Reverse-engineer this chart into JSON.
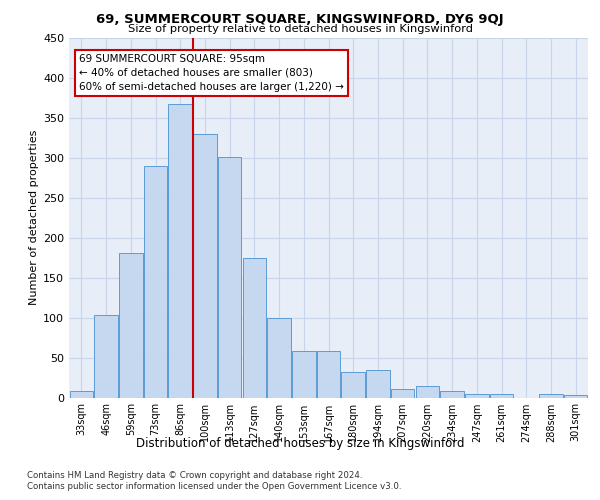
{
  "title": "69, SUMMERCOURT SQUARE, KINGSWINFORD, DY6 9QJ",
  "subtitle": "Size of property relative to detached houses in Kingswinford",
  "xlabel": "Distribution of detached houses by size in Kingswinford",
  "ylabel": "Number of detached properties",
  "categories": [
    "33sqm",
    "46sqm",
    "59sqm",
    "73sqm",
    "86sqm",
    "100sqm",
    "113sqm",
    "127sqm",
    "140sqm",
    "153sqm",
    "167sqm",
    "180sqm",
    "194sqm",
    "207sqm",
    "220sqm",
    "234sqm",
    "247sqm",
    "261sqm",
    "274sqm",
    "288sqm",
    "301sqm"
  ],
  "values": [
    8,
    103,
    181,
    289,
    367,
    330,
    301,
    175,
    100,
    58,
    58,
    32,
    35,
    11,
    15,
    8,
    5,
    5,
    0,
    4,
    3
  ],
  "bar_color": "#c5d8f0",
  "bar_edge_color": "#5b9bd5",
  "vline_x": 4.5,
  "marker_label_line1": "69 SUMMERCOURT SQUARE: 95sqm",
  "marker_label_line2": "← 40% of detached houses are smaller (803)",
  "marker_label_line3": "60% of semi-detached houses are larger (1,220) →",
  "annotation_box_facecolor": "#ffffff",
  "annotation_box_edgecolor": "#cc0000",
  "vline_color": "#cc0000",
  "grid_color": "#c8d4e8",
  "background_color": "#e8eef8",
  "footer_line1": "Contains HM Land Registry data © Crown copyright and database right 2024.",
  "footer_line2": "Contains public sector information licensed under the Open Government Licence v3.0.",
  "ylim": [
    0,
    450
  ],
  "yticks": [
    0,
    50,
    100,
    150,
    200,
    250,
    300,
    350,
    400,
    450
  ]
}
